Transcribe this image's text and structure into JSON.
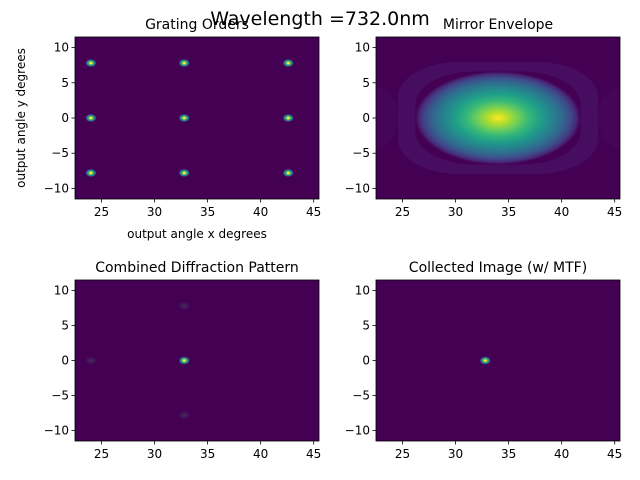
{
  "figure": {
    "suptitle": "Wavelength =732.0nm"
  },
  "chart_data": [
    {
      "type": "heatmap",
      "title": "Grating Orders",
      "xlabel": "output angle x degrees",
      "ylabel": "output angle y degrees",
      "xlim": [
        22.5,
        45.5
      ],
      "ylim": [
        -11.5,
        11.5
      ],
      "xticks": [
        25,
        30,
        35,
        40,
        45
      ],
      "yticks": [
        -10,
        -5,
        0,
        5,
        10
      ],
      "colormap": "viridis",
      "background_color": "#440154",
      "spots": [
        {
          "x": 24.0,
          "y": 7.8,
          "intensity": 1.0
        },
        {
          "x": 32.8,
          "y": 7.8,
          "intensity": 1.0
        },
        {
          "x": 42.6,
          "y": 7.8,
          "intensity": 1.0
        },
        {
          "x": 24.0,
          "y": 0.0,
          "intensity": 1.0
        },
        {
          "x": 32.8,
          "y": 0.0,
          "intensity": 1.0
        },
        {
          "x": 42.6,
          "y": 0.0,
          "intensity": 1.0
        },
        {
          "x": 24.0,
          "y": -7.8,
          "intensity": 1.0
        },
        {
          "x": 32.8,
          "y": -7.8,
          "intensity": 1.0
        },
        {
          "x": 42.6,
          "y": -7.8,
          "intensity": 1.0
        }
      ]
    },
    {
      "type": "heatmap",
      "title": "Mirror Envelope",
      "xlabel": "",
      "ylabel": "",
      "xlim": [
        22.5,
        45.5
      ],
      "ylim": [
        -11.5,
        11.5
      ],
      "xticks": [
        25,
        30,
        35,
        40,
        45
      ],
      "yticks": [
        -10,
        -5,
        0,
        5,
        10
      ],
      "colormap": "viridis",
      "background_color": "#440154",
      "envelope": {
        "center_x": 34.0,
        "center_y": 0.0,
        "half_width_x": 6.5,
        "half_height_y": 5.5,
        "peak": 1.0
      }
    },
    {
      "type": "heatmap",
      "title": "Combined Diffraction Pattern",
      "xlabel": "",
      "ylabel": "",
      "xlim": [
        22.5,
        45.5
      ],
      "ylim": [
        -11.5,
        11.5
      ],
      "xticks": [
        25,
        30,
        35,
        40,
        45
      ],
      "yticks": [
        -10,
        -5,
        0,
        5,
        10
      ],
      "colormap": "viridis",
      "background_color": "#440154",
      "spots": [
        {
          "x": 32.8,
          "y": 0.0,
          "intensity": 1.0
        },
        {
          "x": 32.8,
          "y": 7.8,
          "intensity": 0.08
        },
        {
          "x": 32.8,
          "y": -7.8,
          "intensity": 0.08
        },
        {
          "x": 24.0,
          "y": 0.0,
          "intensity": 0.04
        }
      ]
    },
    {
      "type": "heatmap",
      "title": "Collected Image (w/ MTF)",
      "xlabel": "",
      "ylabel": "",
      "xlim": [
        22.5,
        45.5
      ],
      "ylim": [
        -11.5,
        11.5
      ],
      "xticks": [
        25,
        30,
        35,
        40,
        45
      ],
      "yticks": [
        -10,
        -5,
        0,
        5,
        10
      ],
      "colormap": "viridis",
      "background_color": "#440154",
      "spots": [
        {
          "x": 32.8,
          "y": 0.0,
          "intensity": 1.0
        }
      ]
    }
  ]
}
